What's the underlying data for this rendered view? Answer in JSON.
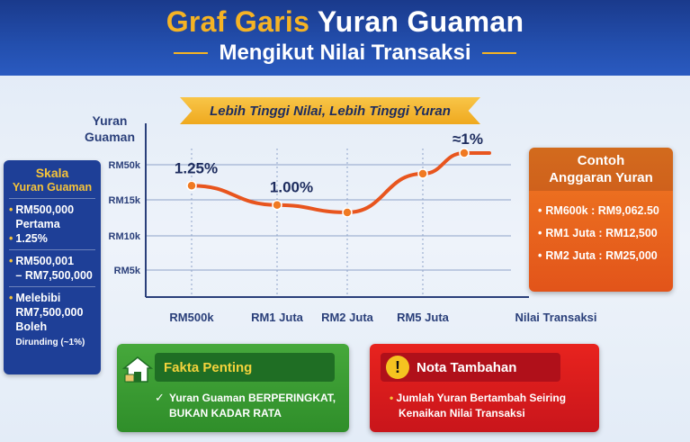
{
  "header": {
    "title_part1": "Graf Garis",
    "title_part2": "Yuran Guaman",
    "subtitle": "Mengikut Nilai Transaksi"
  },
  "ribbon": {
    "text": "Lebih Tinggi Nilai, Lebih Tinggi Yuran"
  },
  "left_panel": {
    "title": "Skala",
    "subtitle": "Yuran Guaman",
    "items": [
      {
        "line1": "RM500,000",
        "line2": "Pertama",
        "line3": "1.25%"
      },
      {
        "line1": "RM500,001",
        "line2": "– RM7,500,000"
      },
      {
        "line1": "Melebibi",
        "line2": "RM7,500,000",
        "line3": "Boleh",
        "line4": "Dirunding (~1%)"
      }
    ]
  },
  "chart_data": {
    "type": "line",
    "ylabel": "Yuran Guaman",
    "xlabel": "Nilai Transaksi",
    "y_tick_labels": [
      "RM50k",
      "RM15k",
      "RM10k",
      "RM5k"
    ],
    "categories": [
      "RM500k",
      "RM1 Juta",
      "RM2 Juta",
      "RM5 Juta"
    ],
    "points": [
      {
        "x": "RM500k",
        "y": 0.75
      },
      {
        "x": "RM1 Juta",
        "y": 0.62
      },
      {
        "x": "RM2 Juta",
        "y": 0.57
      },
      {
        "x": "RM5 Juta",
        "y": 0.83
      },
      {
        "x": "",
        "y": 0.97
      }
    ],
    "annotations": [
      "1.25%",
      "1.00%",
      "≈1%"
    ],
    "colors": {
      "line": "#e8551e",
      "marker": "#f07a22",
      "axis": "#2a3f7a",
      "grid": "#8fa3c9"
    }
  },
  "right_panel": {
    "title_line1": "Contoh",
    "title_line2": "Anggaran Yuran",
    "items": [
      "RM600k : RM9,062.50",
      "RM1 Juta : RM12,500",
      "RM2 Juta : RM25,000"
    ]
  },
  "fakta": {
    "heading": "Fakta Penting",
    "body_line1": "Yuran Guaman BERPERINGKAT,",
    "body_line2": "BUKAN KADAR RATA"
  },
  "nota": {
    "heading": "Nota Tambahan",
    "body_line1": "Jumlah Yuran Bertambah Seiring",
    "body_line2": "Kenaikan Nilai Transaksi"
  }
}
